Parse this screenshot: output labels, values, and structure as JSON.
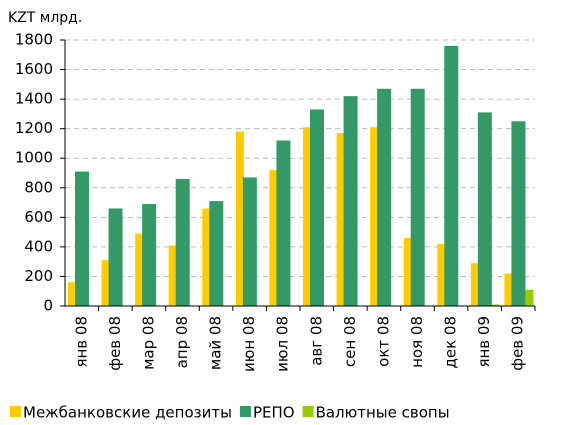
{
  "chart_data": {
    "type": "bar",
    "y_label": "KZT млрд.",
    "categories": [
      "янв 08",
      "фев 08",
      "мар 08",
      "апр 08",
      "май 08",
      "июн 08",
      "июл 08",
      "авг 08",
      "сен 08",
      "окт 08",
      "ноя 08",
      "дек 08",
      "янв 09",
      "фев 09"
    ],
    "series": [
      {
        "name": "Межбанковские депозиты",
        "color": "#ffcc00",
        "values": [
          160,
          310,
          490,
          410,
          660,
          1180,
          920,
          1210,
          1170,
          1210,
          460,
          420,
          290,
          220
        ]
      },
      {
        "name": "РЕПО",
        "color": "#339966",
        "values": [
          910,
          660,
          690,
          860,
          710,
          870,
          1120,
          1330,
          1420,
          1470,
          1470,
          1760,
          1310,
          1250
        ]
      },
      {
        "name": "Валютные свопы",
        "color": "#99cc00",
        "values": [
          0,
          0,
          0,
          0,
          0,
          0,
          0,
          0,
          0,
          0,
          0,
          0,
          10,
          110
        ]
      }
    ],
    "ylim": [
      0,
      1800
    ],
    "yticks": [
      0,
      200,
      400,
      600,
      800,
      1000,
      1200,
      1400,
      1600,
      1800
    ],
    "grid": true
  }
}
